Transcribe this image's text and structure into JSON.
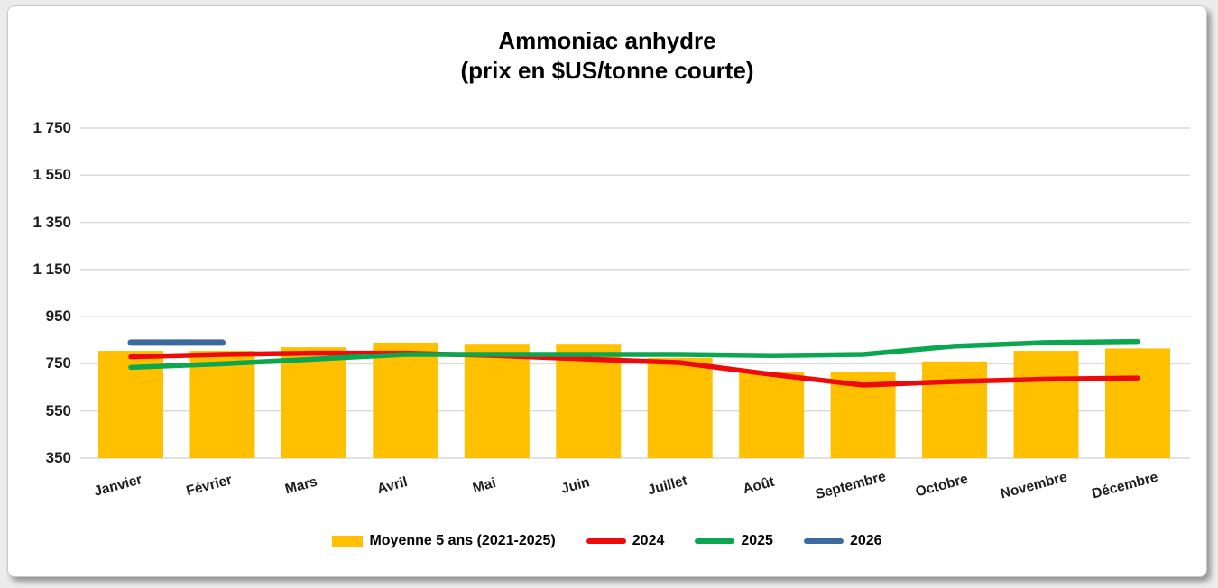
{
  "chart_data": {
    "type": "bar",
    "subtype": "combo-bar-line",
    "title": "Ammoniac anhydre",
    "subtitle": "(prix en $US/tonne courte)",
    "categories": [
      "Janvier",
      "Février",
      "Mars",
      "Avril",
      "Mai",
      "Juin",
      "Juillet",
      "Août",
      "Septembre",
      "Octobre",
      "Novembre",
      "Décembre"
    ],
    "series": [
      {
        "name": "Moyenne 5 ans (2021-2025)",
        "kind": "bar",
        "color": "#FFC000",
        "values": [
          805,
          805,
          820,
          840,
          835,
          835,
          775,
          715,
          715,
          760,
          805,
          815
        ]
      },
      {
        "name": "2024",
        "kind": "line",
        "color": "#EE0A0A",
        "values": [
          780,
          790,
          795,
          795,
          785,
          770,
          755,
          705,
          660,
          675,
          685,
          690
        ]
      },
      {
        "name": "2025",
        "kind": "line",
        "color": "#0AA650",
        "values": [
          735,
          750,
          770,
          790,
          790,
          790,
          790,
          785,
          790,
          825,
          840,
          845
        ]
      },
      {
        "name": "2026",
        "kind": "line",
        "color": "#3A6B9C",
        "values": [
          840,
          840,
          null,
          null,
          null,
          null,
          null,
          null,
          null,
          null,
          null,
          null
        ]
      }
    ],
    "ylim": [
      350,
      1750
    ],
    "ytick_interval": 200,
    "ytick_labels": [
      "350",
      "550",
      "750",
      "950",
      "1 150",
      "1 350",
      "1 550",
      "1 750"
    ],
    "xlabel": "",
    "ylabel": "",
    "grid": true,
    "gridline_color": "#d9d9d9",
    "legend_position": "bottom"
  }
}
